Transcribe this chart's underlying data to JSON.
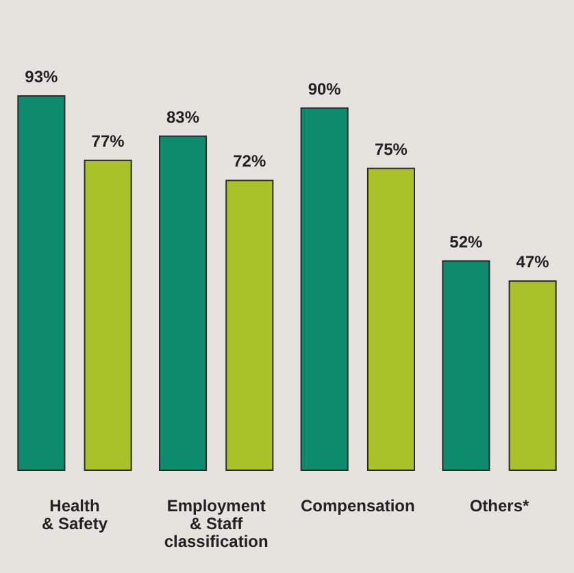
{
  "chart_data": {
    "type": "bar",
    "categories": [
      "Health & Safety",
      "Employment & Staff classification",
      "Compensation",
      "Others*"
    ],
    "series": [
      {
        "color": "#0e8a6c",
        "values": [
          93,
          83,
          90,
          52
        ],
        "value_labels": [
          "93%",
          "83%",
          "90%",
          "52%"
        ]
      },
      {
        "color": "#a9c22a",
        "values": [
          77,
          72,
          75,
          47
        ],
        "value_labels": [
          "77%",
          "72%",
          "75%",
          "47%"
        ]
      }
    ]
  }
}
